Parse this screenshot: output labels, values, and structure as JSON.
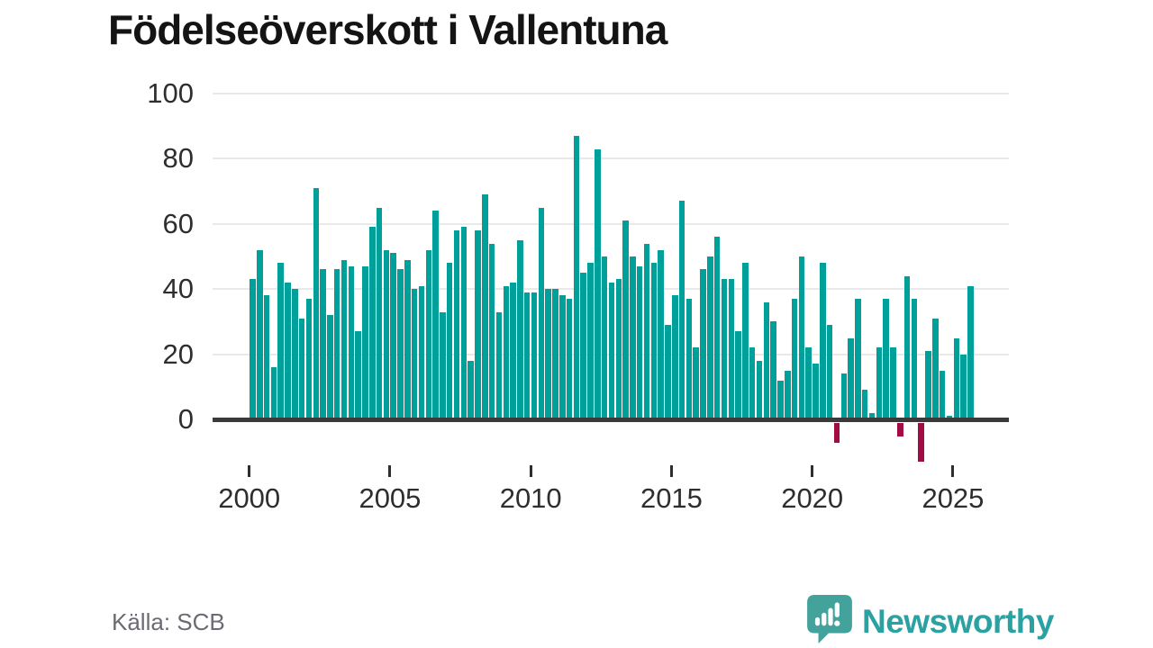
{
  "title": "Födelseöverskott i Vallentuna",
  "source": "Källa: SCB",
  "logo": {
    "text": "Newsworthy"
  },
  "colors": {
    "positive_bar": "#00a09a",
    "negative_bar": "#a10c45",
    "axis": "#3a3a3a",
    "gridline": "#e9e9e9",
    "brand_teal": "#2ca1a2"
  },
  "chart_data": {
    "type": "bar",
    "title": "Födelseöverskott i Vallentuna",
    "xlabel": "",
    "ylabel": "",
    "grid": true,
    "frequency": "quarterly",
    "start_period": "2000-Q1",
    "end_period": "2025-Q3",
    "x_tick_labels": [
      "2000",
      "2005",
      "2010",
      "2015",
      "2020",
      "2025"
    ],
    "x_tick_years": [
      2000,
      2005,
      2010,
      2015,
      2020,
      2025
    ],
    "y_ticks": [
      0,
      20,
      40,
      60,
      80,
      100
    ],
    "ylim": [
      -15,
      100
    ],
    "series": [
      {
        "name": "Födelseöverskott",
        "values": [
          43,
          52,
          38,
          16,
          48,
          42,
          40,
          31,
          37,
          71,
          46,
          32,
          46,
          49,
          47,
          27,
          47,
          59,
          65,
          52,
          51,
          46,
          49,
          40,
          41,
          52,
          64,
          33,
          48,
          58,
          59,
          18,
          58,
          69,
          54,
          33,
          41,
          42,
          55,
          39,
          39,
          65,
          40,
          40,
          38,
          37,
          87,
          45,
          48,
          83,
          50,
          42,
          43,
          61,
          50,
          47,
          54,
          48,
          52,
          29,
          38,
          67,
          37,
          22,
          46,
          50,
          56,
          43,
          43,
          27,
          48,
          22,
          18,
          36,
          30,
          12,
          15,
          37,
          50,
          22,
          17,
          48,
          29,
          -6,
          14,
          25,
          37,
          9,
          2,
          22,
          37,
          22,
          -4,
          44,
          37,
          -12,
          21,
          31,
          15,
          1,
          25,
          20,
          41
        ]
      }
    ]
  }
}
